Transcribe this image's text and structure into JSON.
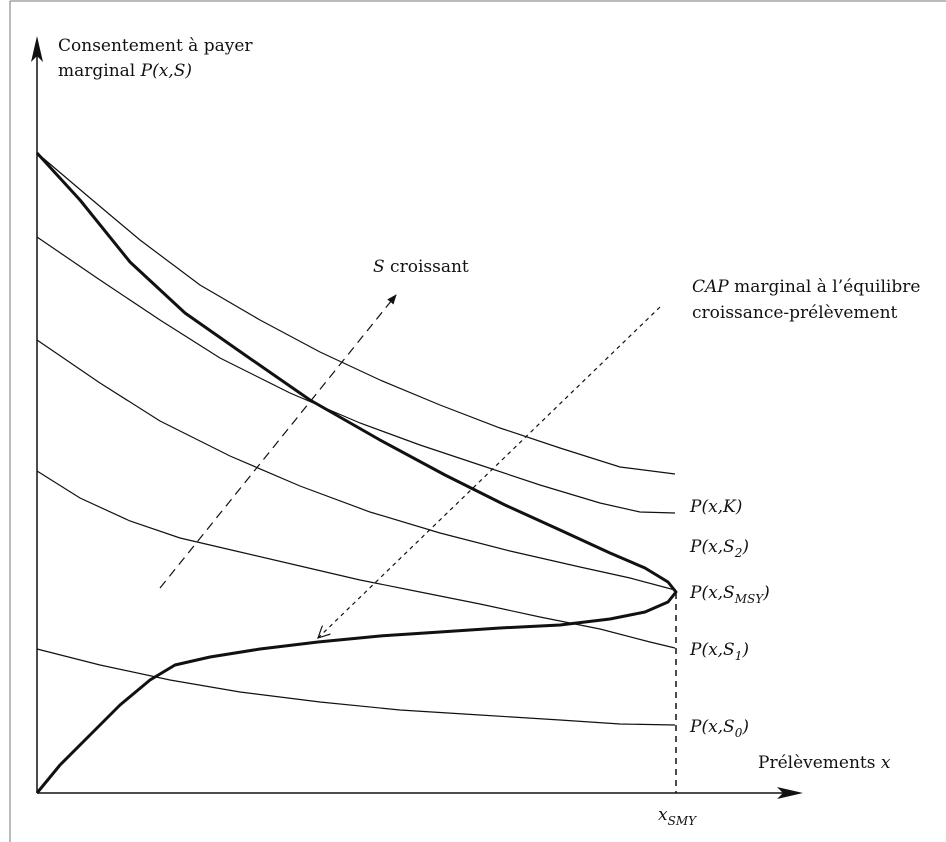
{
  "diagram": {
    "y_axis_label_line1": "Consentement à payer",
    "y_axis_label_line2_prefix": "marginal ",
    "y_axis_label_line2_math": "P(x,S)",
    "x_axis_label_prefix": "Prélèvements ",
    "x_axis_label_var": "x",
    "x_tick_base": "x",
    "x_tick_sub": "SMY",
    "arrow_up_var": "S",
    "arrow_up_text": " croissant",
    "cap_label_line1_var": "CAP",
    "cap_label_line1_text": " marginal à l’équilibre",
    "cap_label_line2": "croissance-prélèvement",
    "curves": [
      {
        "id": "PK",
        "label": "P(x,K)",
        "style": "thin"
      },
      {
        "id": "PS2",
        "label": "P(x,S2)",
        "style": "thin"
      },
      {
        "id": "PSMSY",
        "label": "P(x,SMSY)",
        "style": "thick"
      },
      {
        "id": "PS1",
        "label": "P(x,S1)",
        "style": "thin"
      },
      {
        "id": "PS0",
        "label": "P(x,S0)",
        "style": "thin"
      }
    ],
    "colors": {
      "ink": "#111111",
      "frame": "#777777",
      "background": "#ffffff"
    }
  }
}
